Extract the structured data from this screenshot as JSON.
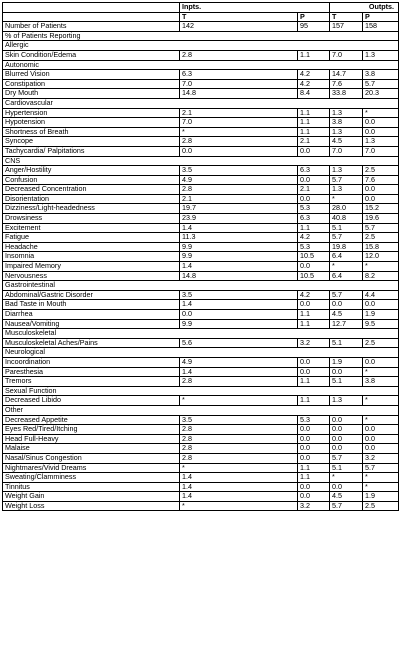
{
  "header": {
    "inpts_label": "Inpts.",
    "outpts_label": "Outpts.",
    "col_t": "T",
    "col_p": "P",
    "col_t2": "T",
    "col_p2": "P"
  },
  "rows": [
    {
      "type": "data",
      "label": "Number of Patients",
      "v": [
        "142",
        "95",
        "157",
        "158"
      ]
    },
    {
      "type": "section",
      "label": "% of Patients Reporting"
    },
    {
      "type": "section",
      "label": "Allergic"
    },
    {
      "type": "data",
      "label": "Skin Condition/Edema",
      "v": [
        "2.8",
        "1.1",
        "7.0",
        "1.3"
      ]
    },
    {
      "type": "section",
      "label": "Autonomic"
    },
    {
      "type": "data",
      "label": "Blurred Vision",
      "v": [
        "6.3",
        "4.2",
        "14.7",
        "3.8"
      ]
    },
    {
      "type": "data",
      "label": "Constipation",
      "v": [
        "7.0",
        "4.2",
        "7.6",
        "5.7"
      ]
    },
    {
      "type": "data",
      "label": "Dry Mouth",
      "v": [
        "14.8",
        "8.4",
        "33.8",
        "20.3"
      ]
    },
    {
      "type": "section",
      "label": "Cardiovascular"
    },
    {
      "type": "data",
      "label": "Hypertension",
      "v": [
        "2.1",
        "1.1",
        "1.3",
        "*"
      ]
    },
    {
      "type": "data",
      "label": "Hypotension",
      "v": [
        "7.0",
        "1.1",
        "3.8",
        "0.0"
      ]
    },
    {
      "type": "data",
      "label": "Shortness of Breath",
      "v": [
        "*",
        "1.1",
        "1.3",
        "0.0"
      ]
    },
    {
      "type": "data",
      "label": "Syncope",
      "v": [
        "2.8",
        "2.1",
        "4.5",
        "1.3"
      ]
    },
    {
      "type": "data",
      "label": "Tachycardia/ Palpitations",
      "v": [
        "0.0",
        "0.0",
        "7.0",
        "7.0"
      ]
    },
    {
      "type": "section",
      "label": "CNS"
    },
    {
      "type": "data",
      "label": "Anger/Hostility",
      "v": [
        "3.5",
        "6.3",
        "1.3",
        "2.5"
      ]
    },
    {
      "type": "data",
      "label": "Confusion",
      "v": [
        "4.9",
        "0.0",
        "5.7",
        "7.6"
      ]
    },
    {
      "type": "data",
      "label": "Decreased Concentration",
      "v": [
        "2.8",
        "2.1",
        "1.3",
        "0.0"
      ]
    },
    {
      "type": "data",
      "label": "Disorientation",
      "v": [
        "2.1",
        "0.0",
        "*",
        "0.0"
      ]
    },
    {
      "type": "data",
      "label": "Dizziness/Light-headedness",
      "v": [
        "19.7",
        "5.3",
        "28.0",
        "15.2"
      ]
    },
    {
      "type": "data",
      "label": "Drowsiness",
      "v": [
        "23.9",
        "6.3",
        "40.8",
        "19.6"
      ]
    },
    {
      "type": "data",
      "label": "Excitement",
      "v": [
        "1.4",
        "1.1",
        "5.1",
        "5.7"
      ]
    },
    {
      "type": "data",
      "label": "Fatigue",
      "v": [
        "11.3",
        "4.2",
        "5.7",
        "2.5"
      ]
    },
    {
      "type": "data",
      "label": "Headache",
      "v": [
        "9.9",
        "5.3",
        "19.8",
        "15.8"
      ]
    },
    {
      "type": "data",
      "label": "Insomnia",
      "v": [
        "9.9",
        "10.5",
        "6.4",
        "12.0"
      ]
    },
    {
      "type": "data",
      "label": "Impaired Memory",
      "v": [
        "1.4",
        "0.0",
        "*",
        "*"
      ]
    },
    {
      "type": "data",
      "label": "Nervousness",
      "v": [
        "14.8",
        "10.5",
        "6.4",
        "8.2"
      ]
    },
    {
      "type": "section",
      "label": "Gastrointestinal"
    },
    {
      "type": "data",
      "label": "Abdominal/Gastric Disorder",
      "v": [
        "3.5",
        "4.2",
        "5.7",
        "4.4"
      ]
    },
    {
      "type": "data",
      "label": "Bad Taste in Mouth",
      "v": [
        "1.4",
        "0.0",
        "0.0",
        "0.0"
      ]
    },
    {
      "type": "data",
      "label": "Diarrhea",
      "v": [
        "0.0",
        "1.1",
        "4.5",
        "1.9"
      ]
    },
    {
      "type": "data",
      "label": "Nausea/Vomiting",
      "v": [
        "9.9",
        "1.1",
        "12.7",
        "9.5"
      ]
    },
    {
      "type": "section",
      "label": "Musculoskeletal"
    },
    {
      "type": "data",
      "label": "Musculoskeletal Aches/Pains",
      "v": [
        "5.6",
        "3.2",
        "5.1",
        "2.5"
      ]
    },
    {
      "type": "section",
      "label": "Neurological"
    },
    {
      "type": "data",
      "label": "Incoordination",
      "v": [
        "4.9",
        "0.0",
        "1.9",
        "0.0"
      ]
    },
    {
      "type": "data",
      "label": "Paresthesia",
      "v": [
        "1.4",
        "0.0",
        "0.0",
        "*"
      ]
    },
    {
      "type": "data",
      "label": "Tremors",
      "v": [
        "2.8",
        "1.1",
        "5.1",
        "3.8"
      ]
    },
    {
      "type": "section",
      "label": "Sexual Function"
    },
    {
      "type": "data",
      "label": "Decreased Libido",
      "v": [
        "*",
        "1.1",
        "1.3",
        "*"
      ]
    },
    {
      "type": "section",
      "label": "Other"
    },
    {
      "type": "data",
      "label": "Decreased Appetite",
      "v": [
        "3.5",
        "5.3",
        "0.0",
        "*"
      ]
    },
    {
      "type": "data",
      "label": "Eyes Red/Tired/Itching",
      "v": [
        "2.8",
        "0.0",
        "0.0",
        "0.0"
      ]
    },
    {
      "type": "data",
      "label": "Head Full-Heavy",
      "v": [
        "2.8",
        "0.0",
        "0.0",
        "0.0"
      ]
    },
    {
      "type": "data",
      "label": "Malaise",
      "v": [
        "2.8",
        "0.0",
        "0.0",
        "0.0"
      ]
    },
    {
      "type": "data",
      "label": "Nasal/Sinus Congestion",
      "v": [
        "2.8",
        "0.0",
        "5.7",
        "3.2"
      ]
    },
    {
      "type": "data",
      "label": "Nightmares/Vivid Dreams",
      "v": [
        "*",
        "1.1",
        "5.1",
        "5.7"
      ]
    },
    {
      "type": "data",
      "label": "Sweating/Clamminess",
      "v": [
        "1.4",
        "1.1",
        "*",
        "*"
      ]
    },
    {
      "type": "data",
      "label": "Tinnitus",
      "v": [
        "1.4",
        "0.0",
        "0.0",
        "*"
      ]
    },
    {
      "type": "data",
      "label": "Weight Gain",
      "v": [
        "1.4",
        "0.0",
        "4.5",
        "1.9"
      ]
    },
    {
      "type": "data",
      "label": "Weight Loss",
      "v": [
        "*",
        "3.2",
        "5.7",
        "2.5"
      ]
    }
  ]
}
